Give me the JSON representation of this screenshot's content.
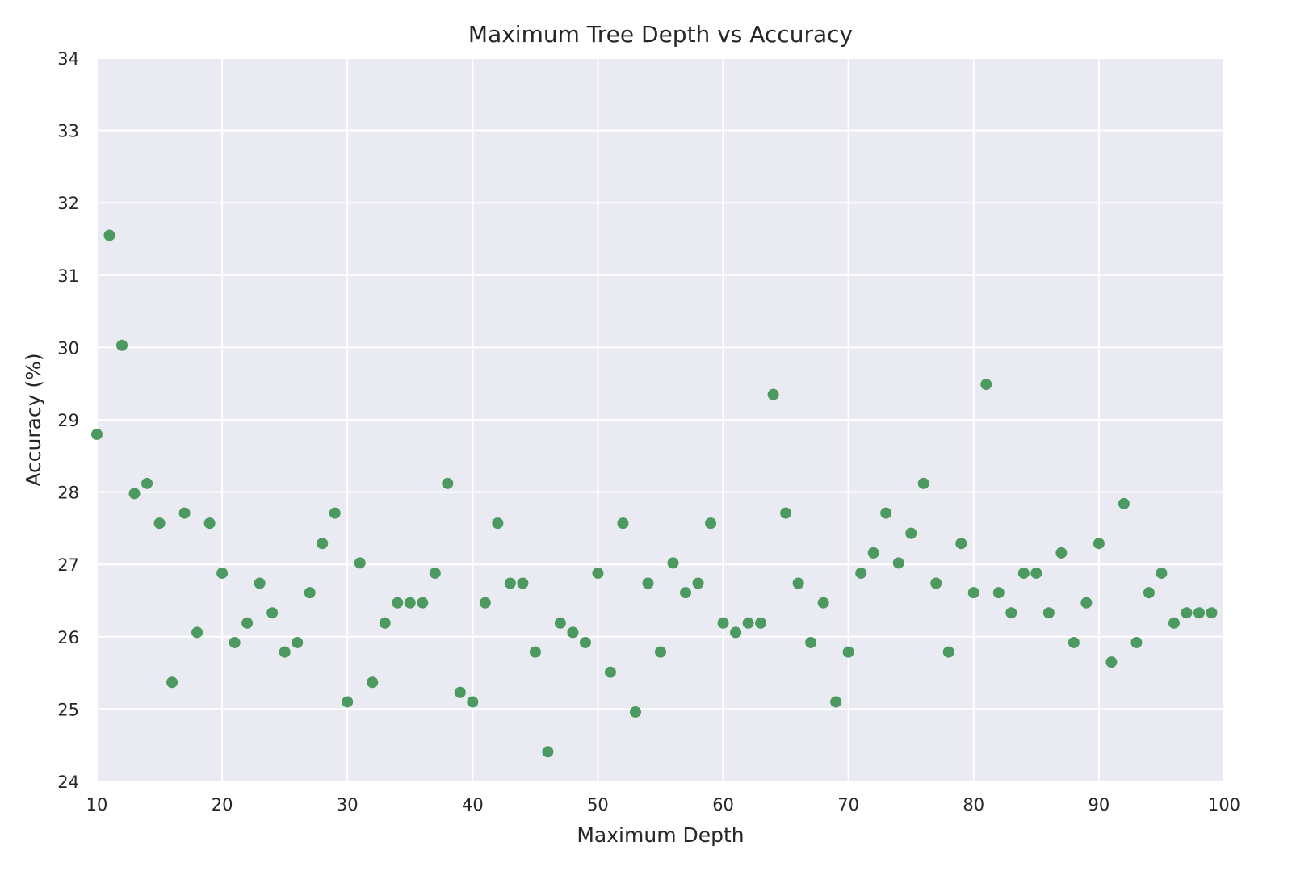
{
  "colors": {
    "plot_background": "#eaeaf2",
    "grid": "#ffffff",
    "marker": "#4c9a5f",
    "text": "#262626"
  },
  "chart_data": {
    "type": "scatter",
    "title": "Maximum Tree Depth vs Accuracy",
    "xlabel": "Maximum Depth",
    "ylabel": "Accuracy (%)",
    "xlim": [
      10,
      100
    ],
    "ylim": [
      24,
      34
    ],
    "xticks": [
      10,
      20,
      30,
      40,
      50,
      60,
      70,
      80,
      90,
      100
    ],
    "yticks": [
      24,
      25,
      26,
      27,
      28,
      29,
      30,
      31,
      32,
      33,
      34
    ],
    "grid": true,
    "series": [
      {
        "x": [
          10,
          11,
          12,
          13,
          14,
          15,
          16,
          17,
          18,
          19,
          20,
          21,
          22,
          23,
          24,
          25,
          26,
          27,
          28,
          29,
          30,
          31,
          32,
          33,
          34,
          35,
          36,
          37,
          38,
          39,
          40,
          41,
          42,
          43,
          44,
          45,
          46,
          47,
          48,
          49,
          50,
          51,
          52,
          53,
          54,
          55,
          56,
          57,
          58,
          59,
          60,
          61,
          62,
          63,
          64,
          65,
          66,
          67,
          68,
          69,
          70,
          71,
          72,
          73,
          74,
          75,
          76,
          77,
          78,
          79,
          80,
          81,
          82,
          83,
          84,
          85,
          86,
          87,
          88,
          89,
          90,
          91,
          92,
          93,
          94,
          95,
          96,
          97,
          98,
          99
        ],
        "y": [
          28.8,
          31.55,
          30.03,
          27.98,
          28.12,
          27.57,
          25.37,
          27.71,
          26.06,
          27.57,
          26.88,
          25.92,
          26.19,
          26.74,
          26.33,
          25.79,
          25.92,
          26.61,
          27.29,
          27.71,
          25.1,
          27.02,
          25.37,
          26.19,
          26.47,
          26.47,
          26.47,
          26.88,
          28.12,
          25.23,
          25.1,
          26.47,
          27.57,
          26.74,
          26.74,
          25.79,
          24.41,
          26.19,
          26.06,
          25.92,
          26.88,
          25.51,
          27.57,
          24.96,
          26.74,
          25.79,
          27.02,
          26.61,
          26.74,
          27.57,
          26.19,
          26.06,
          26.19,
          26.19,
          29.35,
          27.71,
          26.74,
          25.92,
          26.47,
          25.1,
          25.79,
          26.88,
          27.16,
          27.71,
          27.02,
          27.43,
          28.12,
          26.74,
          25.79,
          27.29,
          26.61,
          29.49,
          26.61,
          26.33,
          26.88,
          26.88,
          26.33,
          27.16,
          25.92,
          26.47,
          27.29,
          25.65,
          27.84,
          25.92,
          26.61,
          26.88,
          26.19,
          26.33,
          26.33,
          26.33
        ]
      }
    ]
  }
}
